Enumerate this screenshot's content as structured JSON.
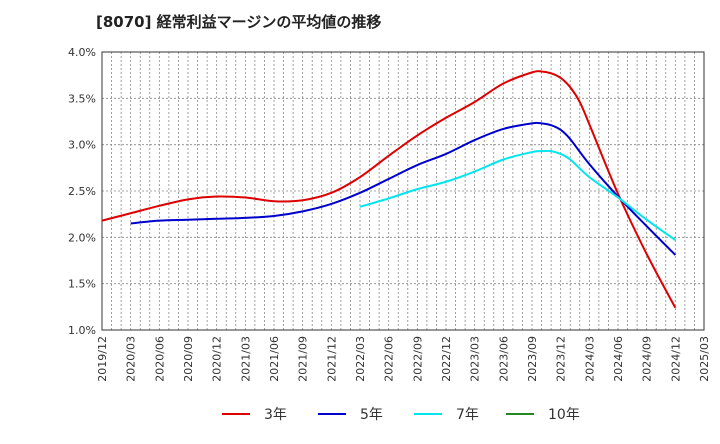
{
  "title": "[8070]  経常利益マージンの平均値の推移",
  "chart_data": {
    "type": "line",
    "title": "[8070]  経常利益マージンの平均値の推移",
    "xlabel": "",
    "ylabel": "",
    "ylim": [
      1.0,
      4.0
    ],
    "yticks": [
      "1.0%",
      "1.5%",
      "2.0%",
      "2.5%",
      "3.0%",
      "3.5%",
      "4.0%"
    ],
    "xticks": [
      "2019/12",
      "2020/03",
      "2020/06",
      "2020/09",
      "2020/12",
      "2021/03",
      "2021/06",
      "2021/09",
      "2021/12",
      "2022/03",
      "2022/06",
      "2022/09",
      "2022/12",
      "2023/03",
      "2023/06",
      "2023/09",
      "2023/12",
      "2024/03",
      "2024/06",
      "2024/09",
      "2024/12",
      "2025/03"
    ],
    "grid": true,
    "legend_position": "bottom",
    "series": [
      {
        "name": "3年",
        "color": "#dd0000",
        "x": [
          "2019/12",
          "2020/03",
          "2020/06",
          "2020/09",
          "2020/12",
          "2021/03",
          "2021/06",
          "2021/09",
          "2021/12",
          "2022/03",
          "2022/06",
          "2022/09",
          "2022/12",
          "2023/03",
          "2023/06",
          "2023/09",
          "2023/10",
          "2023/11",
          "2023/12",
          "2024/01",
          "2024/02",
          "2024/03",
          "2024/06",
          "2024/09",
          "2024/12"
        ],
        "values": [
          2.18,
          2.26,
          2.34,
          2.41,
          2.44,
          2.43,
          2.39,
          2.4,
          2.48,
          2.65,
          2.88,
          3.1,
          3.29,
          3.46,
          3.66,
          3.78,
          3.79,
          3.77,
          3.72,
          3.62,
          3.46,
          3.22,
          2.47,
          1.82,
          1.24
        ]
      },
      {
        "name": "5年",
        "color": "#0000cc",
        "x": [
          "2020/03",
          "2020/06",
          "2020/09",
          "2020/12",
          "2021/03",
          "2021/06",
          "2021/09",
          "2021/12",
          "2022/03",
          "2022/06",
          "2022/09",
          "2022/12",
          "2023/03",
          "2023/06",
          "2023/09",
          "2023/10",
          "2023/11",
          "2023/12",
          "2024/01",
          "2024/03",
          "2024/06",
          "2024/09",
          "2024/12"
        ],
        "values": [
          2.15,
          2.18,
          2.19,
          2.2,
          2.21,
          2.23,
          2.28,
          2.36,
          2.48,
          2.63,
          2.78,
          2.9,
          3.05,
          3.17,
          3.23,
          3.23,
          3.21,
          3.16,
          3.06,
          2.79,
          2.44,
          2.12,
          1.81
        ]
      },
      {
        "name": "7年",
        "color": "#00e5ee",
        "x": [
          "2022/03",
          "2022/06",
          "2022/09",
          "2022/12",
          "2023/03",
          "2023/06",
          "2023/09",
          "2023/10",
          "2023/11",
          "2023/12",
          "2024/01",
          "2024/03",
          "2024/06",
          "2024/09",
          "2024/12"
        ],
        "values": [
          2.33,
          2.42,
          2.52,
          2.6,
          2.71,
          2.84,
          2.92,
          2.93,
          2.93,
          2.9,
          2.84,
          2.65,
          2.43,
          2.19,
          1.97
        ]
      },
      {
        "name": "10年",
        "color": "#228822",
        "x": [],
        "values": []
      }
    ]
  }
}
